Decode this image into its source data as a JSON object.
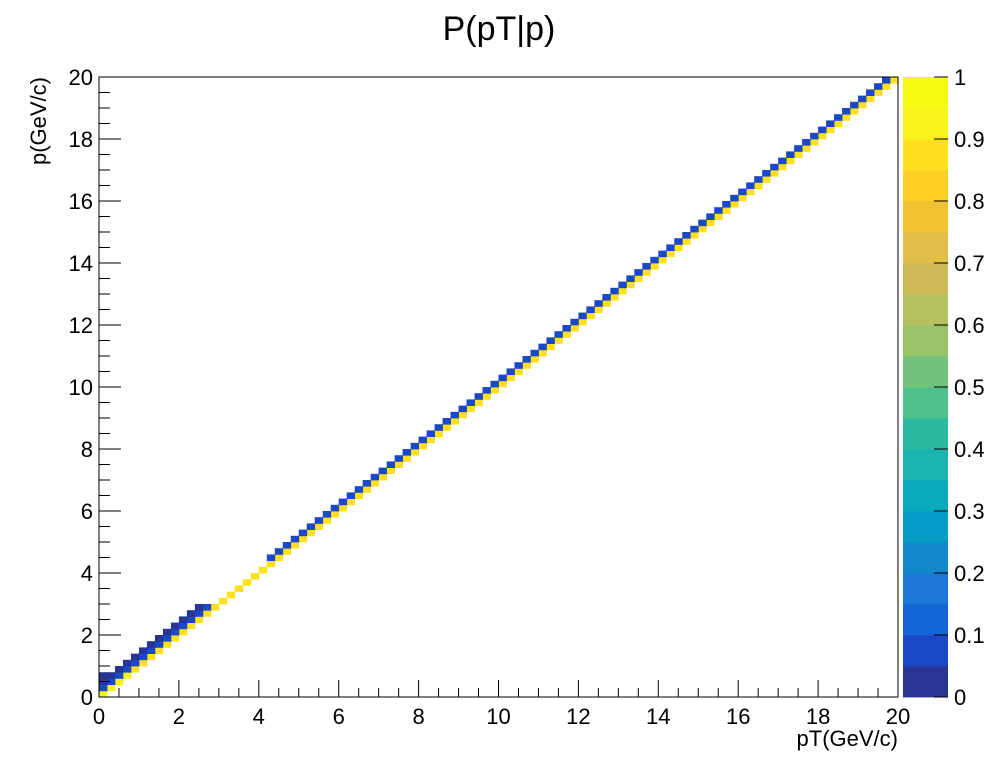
{
  "chart_data": {
    "type": "heatmap",
    "title": "P(pT|p)",
    "xlabel": "pT(GeV/c)",
    "ylabel": "p(GeV/c)",
    "xlim": [
      0,
      20
    ],
    "ylim": [
      0,
      20
    ],
    "x_ticks": [
      "0",
      "2",
      "4",
      "6",
      "8",
      "10",
      "12",
      "14",
      "16",
      "18",
      "20"
    ],
    "y_ticks": [
      "0",
      "2",
      "4",
      "6",
      "8",
      "10",
      "12",
      "14",
      "16",
      "18",
      "20"
    ],
    "bins": {
      "x": 100,
      "y": 100
    },
    "colorbar": {
      "range": [
        0,
        1
      ],
      "ticks": [
        "0",
        "0.1",
        "0.2",
        "0.3",
        "0.4",
        "0.5",
        "0.6",
        "0.7",
        "0.8",
        "0.9",
        "1"
      ],
      "palette": [
        "#283593",
        "#1a48c8",
        "#1565d8",
        "#1c77d8",
        "#1288cc",
        "#049cc6",
        "#0aaabd",
        "#1ab5b0",
        "#2bbaa0",
        "#4fbf8c",
        "#73c17a",
        "#97c36a",
        "#b5c05e",
        "#cdb956",
        "#e2bd47",
        "#f1c232",
        "#fdcf24",
        "#fde11e",
        "#f9f21a",
        "#f6fb14"
      ]
    },
    "description_of_band": "Nonzero bins lie just above the diagonal p = pT: the bin on the diagonal holds the largest value (near 1, yellow), with lower values (blue) in the bins for p slightly above pT; at low p the band is wider with intermediate (green/cyan) values."
  }
}
